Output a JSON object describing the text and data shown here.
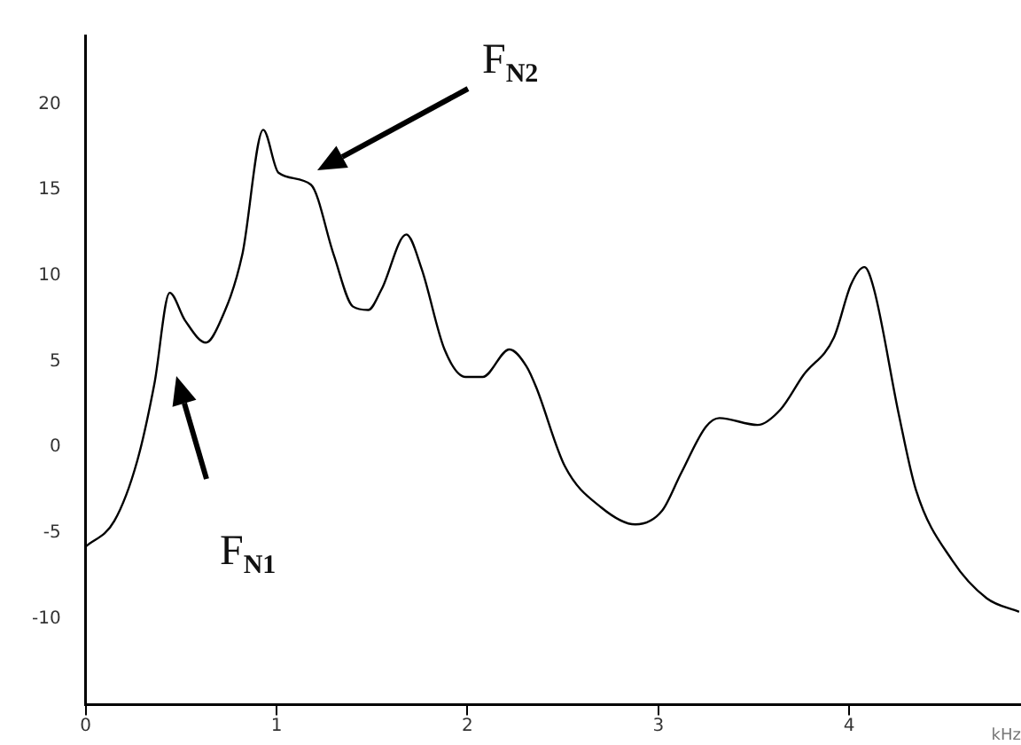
{
  "chart_data": {
    "type": "line",
    "xlabel": "kHz",
    "x": [
      0,
      0.15,
      0.27,
      0.36,
      0.44,
      0.52,
      0.63,
      0.7,
      0.82,
      0.93,
      1.01,
      1.18,
      1.3,
      1.4,
      1.48,
      1.55,
      1.68,
      1.76,
      1.88,
      1.99,
      2.08,
      2.22,
      2.31,
      2.36,
      2.51,
      2.7,
      2.88,
      3.02,
      3.12,
      3.25,
      3.32,
      3.52,
      3.64,
      3.76,
      3.92,
      4.01,
      4.08,
      4.13,
      4.26,
      4.35,
      4.54,
      4.72,
      4.89
    ],
    "series": [
      {
        "color": "#000000",
        "values": [
          -5.8,
          -4.3,
          -0.8,
          3.7,
          9.0,
          7.4,
          6.1,
          7.2,
          11.2,
          18.5,
          16.0,
          15.3,
          11.2,
          8.2,
          8.0,
          9.2,
          12.4,
          10.4,
          5.7,
          4.1,
          4.1,
          5.7,
          4.7,
          3.5,
          -1.1,
          -3.5,
          -4.5,
          -3.7,
          -1.5,
          1.2,
          1.7,
          1.3,
          2.2,
          4.2,
          6.4,
          9.5,
          10.5,
          9.2,
          1.9,
          -2.5,
          -6.6,
          -8.8,
          -9.6
        ]
      }
    ],
    "xlim": [
      0,
      4.9
    ],
    "xticks": [
      0,
      1,
      2,
      3,
      4
    ],
    "ylim": [
      -15,
      24
    ],
    "yticks": [
      -10,
      -5,
      0,
      5,
      10,
      15,
      20
    ],
    "grid": false,
    "legend": false,
    "marker": "none",
    "line_style": "solid",
    "annotations": [
      "F$_{N1}$",
      "F$_{N2}$"
    ]
  }
}
